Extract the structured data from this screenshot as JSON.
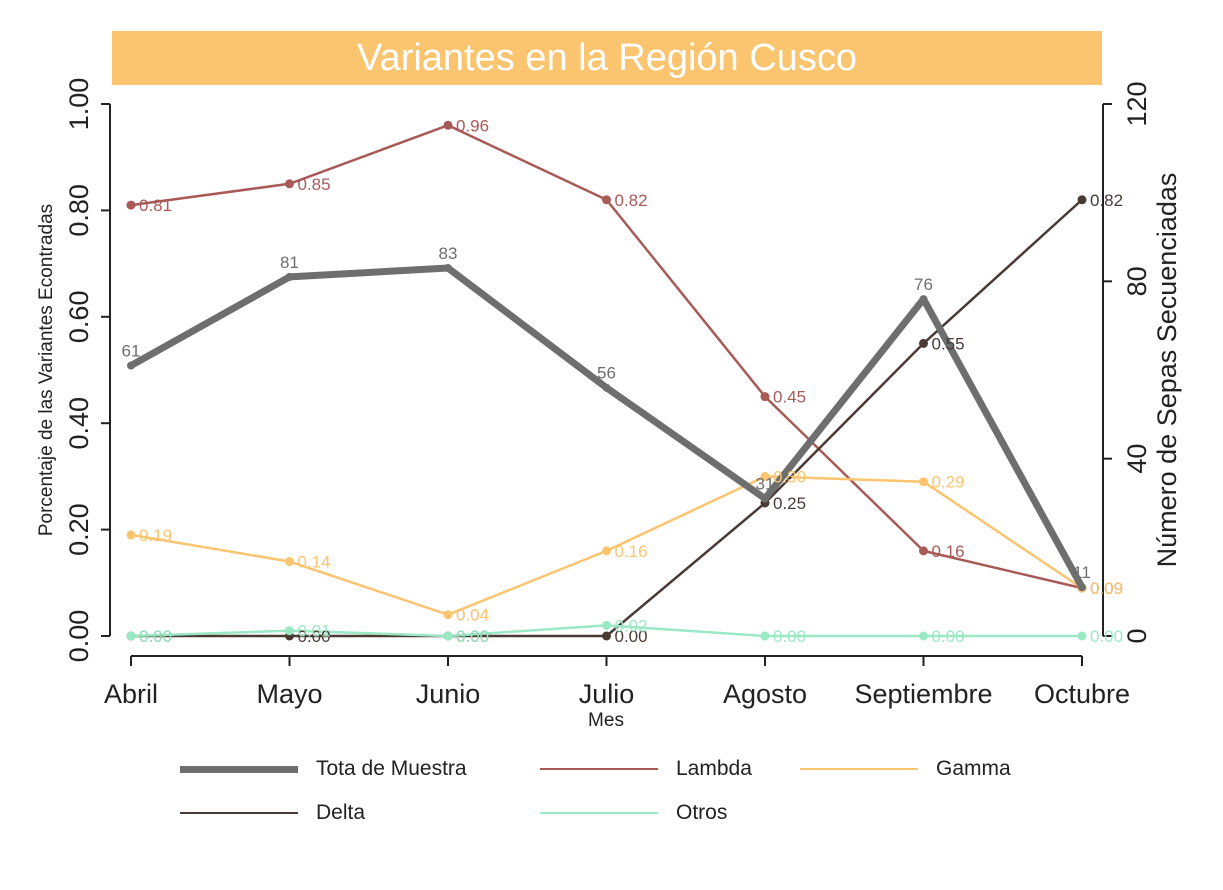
{
  "chart_data": {
    "type": "line",
    "title": "Variantes en la Región Cusco",
    "xlabel": "Mes",
    "ylabel_left": "Porcentaje de las Variantes Econtradas",
    "ylabel_right": "Número de Sepas Secuenciadas",
    "categories": [
      "Abril",
      "Mayo",
      "Junio",
      "Julio",
      "Agosto",
      "Septiembre",
      "Octubre"
    ],
    "ylim_left": [
      0,
      1
    ],
    "yticks_left": [
      "0.00",
      "0.20",
      "0.40",
      "0.60",
      "0.80",
      "1.00"
    ],
    "ylim_right": [
      0,
      120
    ],
    "yticks_right": [
      "0",
      "40",
      "80",
      "120"
    ],
    "grid": false,
    "legend_position": "bottom",
    "series": [
      {
        "name": "Tota de Muestra",
        "axis": "right",
        "color": "#6e6e6e",
        "width": 7,
        "values": [
          61,
          81,
          83,
          56,
          31,
          76,
          11
        ],
        "labels": [
          "61",
          "81",
          "83",
          "56",
          "31",
          "76",
          "11"
        ]
      },
      {
        "name": "Lambda",
        "axis": "left",
        "color": "#a85a57",
        "width": 2.5,
        "values": [
          0.81,
          0.85,
          0.96,
          0.82,
          0.45,
          0.16,
          0.09
        ],
        "labels": [
          "0.81",
          "0.85",
          "0.96",
          "0.82",
          "0.45",
          "0.16",
          "0.09"
        ]
      },
      {
        "name": "Gamma",
        "axis": "left",
        "color": "#fbc46f",
        "width": 2.5,
        "values": [
          0.19,
          0.14,
          0.04,
          0.16,
          0.3,
          0.29,
          0.09
        ],
        "labels": [
          "0.19",
          "0.14",
          "0.04",
          "0.16",
          "0.30",
          "0.29",
          "0.09"
        ]
      },
      {
        "name": "Delta",
        "axis": "left",
        "color": "#4a3a35",
        "width": 2.5,
        "values": [
          0.0,
          0.0,
          0.0,
          0.0,
          0.25,
          0.55,
          0.82
        ],
        "labels": [
          "0.00",
          "0.00",
          "0.00",
          "0.00",
          "0.25",
          "0.55",
          "0.82"
        ]
      },
      {
        "name": "Otros",
        "axis": "left",
        "color": "#9be8c4",
        "width": 2.5,
        "values": [
          0.0,
          0.01,
          0.0,
          0.02,
          0.0,
          0.0,
          0.0
        ],
        "labels": [
          "0.00",
          "0.01",
          "0.00",
          "0.02",
          "0.00",
          "0.00",
          "0.00"
        ]
      }
    ]
  }
}
